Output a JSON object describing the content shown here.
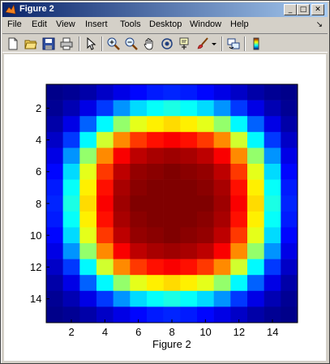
{
  "window": {
    "title": "Figure 2",
    "buttons": {
      "minimize": "_",
      "maximize": "□",
      "close": "✕"
    }
  },
  "menu": {
    "items": [
      "File",
      "Edit",
      "View",
      "Insert",
      "Tools",
      "Desktop",
      "Window",
      "Help"
    ],
    "overflow_arrow": "↘"
  },
  "toolbar": {
    "buttons": [
      {
        "icon": "new-figure-icon"
      },
      {
        "icon": "open-file-icon"
      },
      {
        "icon": "save-icon"
      },
      {
        "icon": "print-icon"
      },
      {
        "icon": "edit-plot-arrow-icon"
      },
      {
        "icon": "zoom-in-icon"
      },
      {
        "icon": "zoom-out-icon"
      },
      {
        "icon": "pan-hand-icon"
      },
      {
        "icon": "rotate-3d-icon"
      },
      {
        "icon": "data-cursor-icon"
      },
      {
        "icon": "brush-icon"
      },
      {
        "icon": "link-plot-icon"
      },
      {
        "icon": "colorbar-icon"
      }
    ]
  },
  "figure": {
    "xlabel": "Figure 2"
  },
  "chart_data": {
    "type": "heatmap",
    "colormap": "jet",
    "title": "",
    "xlabel": "Figure 2",
    "ylabel": "",
    "x_range": [
      0.5,
      15.5
    ],
    "y_range": [
      0.5,
      15.5
    ],
    "y_direction": "reversed",
    "x_ticks": [
      2,
      4,
      6,
      8,
      10,
      12,
      14
    ],
    "y_ticks": [
      2,
      4,
      6,
      8,
      10,
      12,
      14
    ],
    "grid": false,
    "rows": 15,
    "cols": 15,
    "center": [
      8,
      8
    ],
    "color_limits": [
      0,
      1
    ],
    "values": [
      [
        0.01,
        0.02,
        0.04,
        0.07,
        0.1,
        0.13,
        0.15,
        0.16,
        0.15,
        0.13,
        0.1,
        0.07,
        0.04,
        0.02,
        0.01
      ],
      [
        0.02,
        0.05,
        0.1,
        0.18,
        0.27,
        0.34,
        0.38,
        0.4,
        0.38,
        0.34,
        0.27,
        0.18,
        0.1,
        0.05,
        0.02
      ],
      [
        0.04,
        0.1,
        0.22,
        0.37,
        0.52,
        0.6,
        0.64,
        0.66,
        0.64,
        0.6,
        0.52,
        0.37,
        0.22,
        0.1,
        0.04
      ],
      [
        0.07,
        0.18,
        0.37,
        0.58,
        0.74,
        0.82,
        0.86,
        0.88,
        0.86,
        0.82,
        0.74,
        0.58,
        0.37,
        0.18,
        0.07
      ],
      [
        0.1,
        0.27,
        0.52,
        0.74,
        0.88,
        0.94,
        0.96,
        0.97,
        0.96,
        0.94,
        0.88,
        0.74,
        0.52,
        0.27,
        0.1
      ],
      [
        0.13,
        0.34,
        0.6,
        0.82,
        0.94,
        0.98,
        0.99,
        1.0,
        0.99,
        0.98,
        0.94,
        0.82,
        0.6,
        0.34,
        0.13
      ],
      [
        0.15,
        0.38,
        0.64,
        0.86,
        0.96,
        0.99,
        1.0,
        1.0,
        1.0,
        0.99,
        0.96,
        0.86,
        0.64,
        0.38,
        0.15
      ],
      [
        0.16,
        0.4,
        0.66,
        0.88,
        0.97,
        1.0,
        1.0,
        1.0,
        1.0,
        1.0,
        0.97,
        0.88,
        0.66,
        0.4,
        0.16
      ],
      [
        0.15,
        0.38,
        0.64,
        0.86,
        0.96,
        0.99,
        1.0,
        1.0,
        1.0,
        0.99,
        0.96,
        0.86,
        0.64,
        0.38,
        0.15
      ],
      [
        0.13,
        0.34,
        0.6,
        0.82,
        0.94,
        0.98,
        0.99,
        1.0,
        0.99,
        0.98,
        0.94,
        0.82,
        0.6,
        0.34,
        0.13
      ],
      [
        0.1,
        0.27,
        0.52,
        0.74,
        0.88,
        0.94,
        0.96,
        0.97,
        0.96,
        0.94,
        0.88,
        0.74,
        0.52,
        0.27,
        0.1
      ],
      [
        0.07,
        0.18,
        0.37,
        0.58,
        0.74,
        0.82,
        0.86,
        0.88,
        0.86,
        0.82,
        0.74,
        0.58,
        0.37,
        0.18,
        0.07
      ],
      [
        0.04,
        0.1,
        0.22,
        0.37,
        0.52,
        0.6,
        0.64,
        0.66,
        0.64,
        0.6,
        0.52,
        0.37,
        0.22,
        0.1,
        0.04
      ],
      [
        0.02,
        0.05,
        0.1,
        0.18,
        0.27,
        0.34,
        0.38,
        0.4,
        0.38,
        0.34,
        0.27,
        0.18,
        0.1,
        0.05,
        0.02
      ],
      [
        0.01,
        0.02,
        0.04,
        0.07,
        0.1,
        0.13,
        0.15,
        0.16,
        0.15,
        0.13,
        0.1,
        0.07,
        0.04,
        0.02,
        0.01
      ]
    ]
  }
}
